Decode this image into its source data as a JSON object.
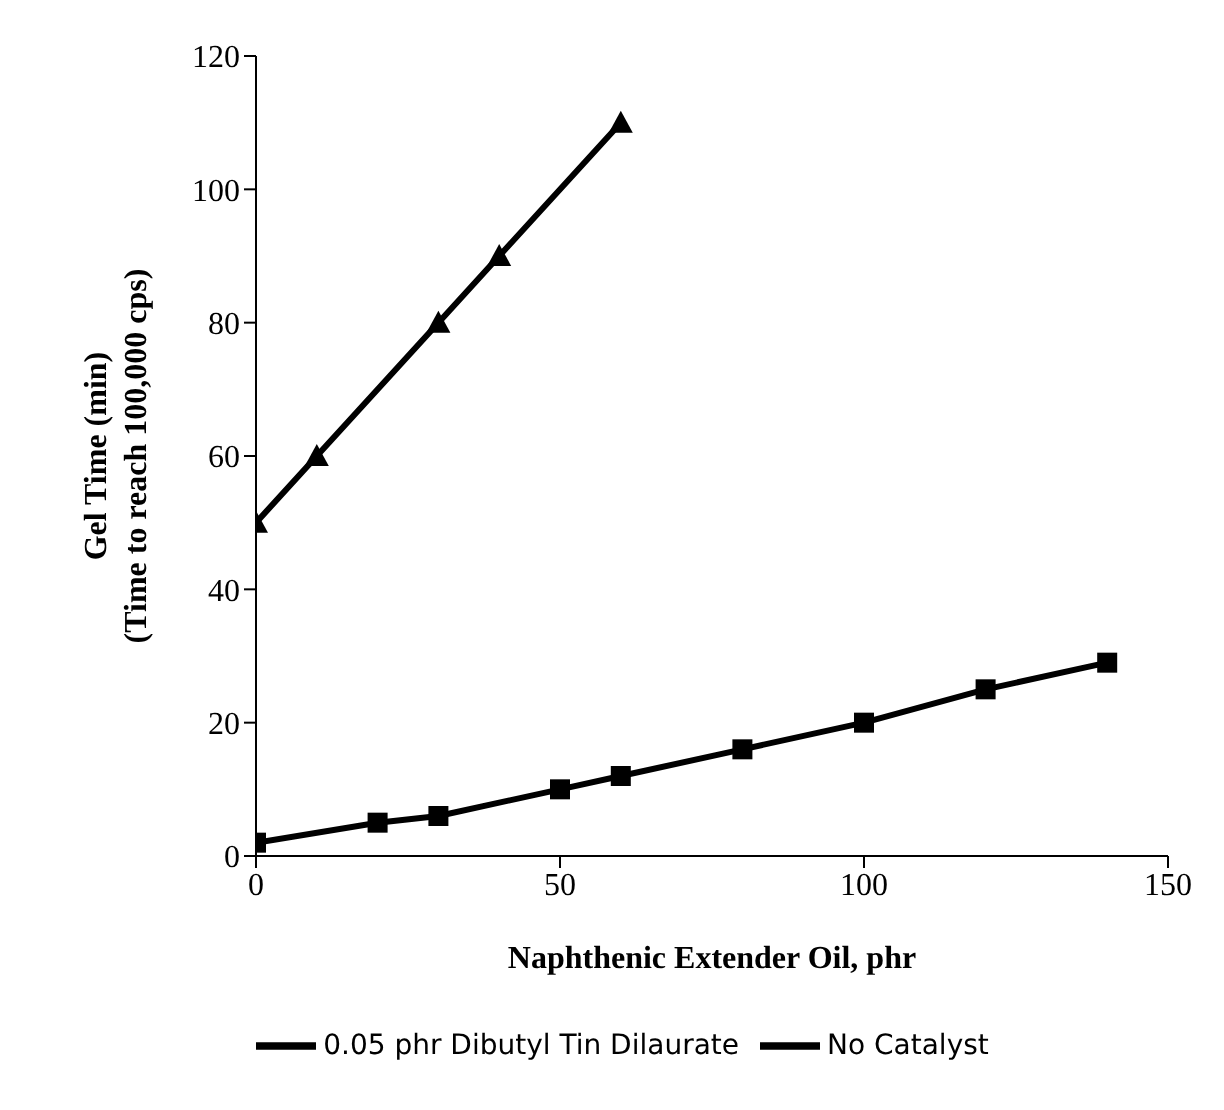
{
  "chart_data": {
    "type": "line",
    "xlabel": "Naphthenic Extender Oil, phr",
    "ylabel": "Gel Time (min)\n(Time to reach 100,000 cps)",
    "xlim": [
      0,
      150
    ],
    "xticks": [
      0,
      50,
      100,
      150
    ],
    "ylim": [
      0,
      120
    ],
    "yticks": [
      0,
      20,
      40,
      60,
      80,
      100,
      120
    ],
    "grid": false,
    "legend": "bottom",
    "line_style": "solid",
    "series": [
      {
        "name": "0.05 phr Dibutyl Tin Dilaurate",
        "color": "#000000",
        "marker": "square",
        "x": [
          0,
          20,
          30,
          50,
          60,
          80,
          100,
          120,
          140
        ],
        "values": [
          2,
          5,
          6,
          10,
          12,
          16,
          20,
          25,
          29
        ]
      },
      {
        "name": "No Catalyst",
        "color": "#000000",
        "marker": "triangle",
        "x": [
          0,
          10,
          30,
          40,
          60
        ],
        "values": [
          50,
          60,
          80,
          90,
          110
        ]
      }
    ]
  }
}
